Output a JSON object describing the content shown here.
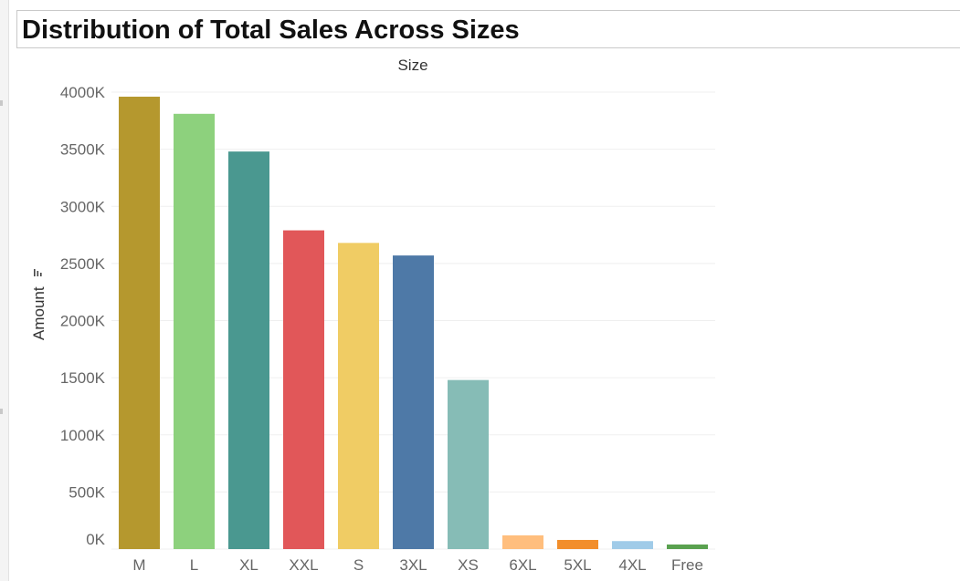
{
  "title": "Distribution of Total Sales Across Sizes",
  "chart_data": {
    "type": "bar",
    "title": "Distribution of Total Sales Across Sizes",
    "xlabel": "Size",
    "ylabel": "Amount",
    "categories": [
      "M",
      "L",
      "XL",
      "XXL",
      "S",
      "3XL",
      "XS",
      "6XL",
      "5XL",
      "4XL",
      "Free"
    ],
    "values": [
      3960000,
      3810000,
      3480000,
      2790000,
      2680000,
      2570000,
      1480000,
      120000,
      80000,
      70000,
      40000
    ],
    "colors": [
      "#b5982e",
      "#8dd17d",
      "#4a9890",
      "#e15759",
      "#f0cc64",
      "#4e79a7",
      "#86bcb6",
      "#ffbe7d",
      "#f28e2b",
      "#a0cbe8",
      "#59a14f"
    ],
    "ylim": [
      0,
      4000000
    ],
    "yticks": [
      0,
      500000,
      1000000,
      1500000,
      2000000,
      2500000,
      3000000,
      3500000,
      4000000
    ],
    "ytick_labels": [
      "0K",
      "500K",
      "1000K",
      "1500K",
      "2000K",
      "2500K",
      "3000K",
      "3500K",
      "4000K"
    ],
    "grid": true,
    "x_axis_position": "top",
    "sort_indicator": "sort-descending-icon"
  }
}
